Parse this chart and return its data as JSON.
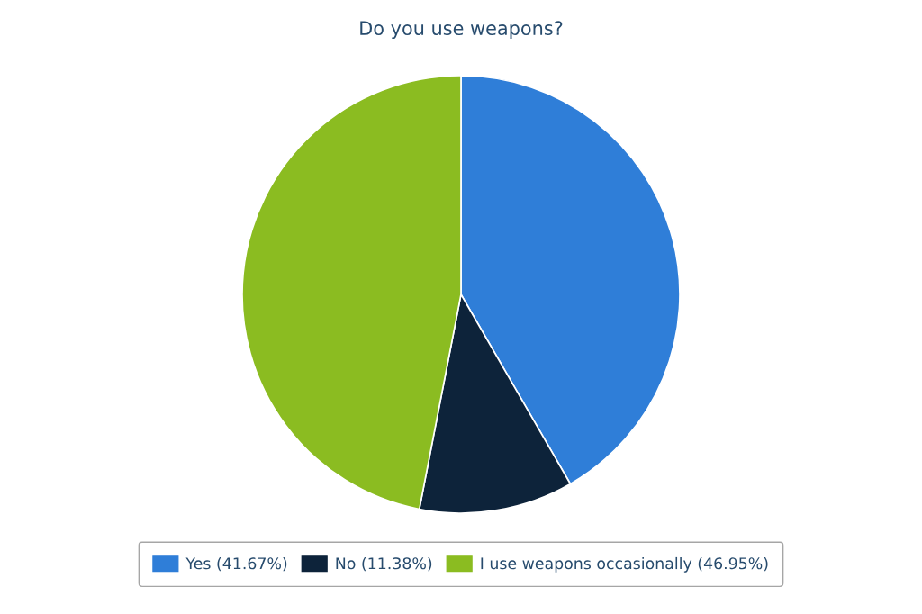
{
  "chart_data": {
    "type": "pie",
    "title": "Do you use weapons?",
    "categories": [
      "Yes (41.67%)",
      "No (11.38%)",
      "I use weapons occasionally (46.95%)"
    ],
    "values": [
      41.67,
      11.38,
      46.95
    ],
    "colors": [
      "#2f7ed8",
      "#0d233a",
      "#8bbc21"
    ],
    "legend": "bottom"
  }
}
